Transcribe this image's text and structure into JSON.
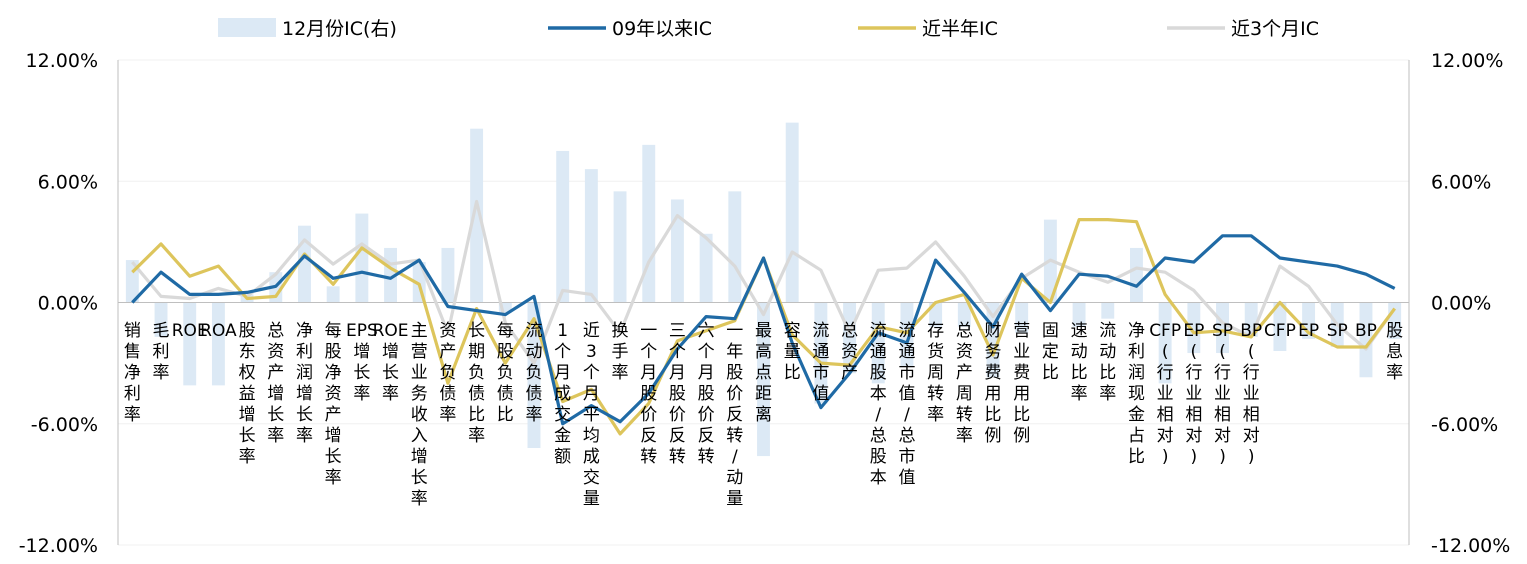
{
  "chart_data": {
    "type": "bar+line",
    "title": "",
    "ylim_left": [
      -0.12,
      0.12
    ],
    "ylim_right": [
      -0.12,
      0.12
    ],
    "left_ticks": [
      "12.00%",
      "6.00%",
      "0.00%",
      "-6.00%",
      "-12.00%"
    ],
    "right_ticks": [
      "12.00%",
      "6.00%",
      "0.00%",
      "-6.00%",
      "-12.00%"
    ],
    "legend_position": "top",
    "categories": [
      "销售净利率",
      "毛利率",
      "ROE",
      "ROA",
      "股东权益增长率",
      "总资产增长率",
      "净利润增长率",
      "每股净资产增长率",
      "EPS增长率",
      "ROE增长率",
      "主营业务收入增长率",
      "资产负债率",
      "长期负债比率",
      "每股负债比",
      "流动负债率",
      "1个月成交金额",
      "近3个月平均成交量",
      "换手率",
      "一个月股价反转",
      "三个月股价反转",
      "六个月股价反转",
      "一年股价反转/动量",
      "最高点距离",
      "容量比",
      "流通市值",
      "总资产",
      "流通股本/总股本",
      "流通市值/总市值",
      "存货周转率",
      "总资产周转率",
      "财务费用比例",
      "营业费用比例",
      "固定比",
      "速动比率",
      "流动比率",
      "净利润现金占比",
      "CFP(行业相对)",
      "EP(行业相对)",
      "SP(行业相对)",
      "BP(行业相对)",
      "CFP",
      "EP",
      "SP",
      "BP",
      "股息率"
    ],
    "series": [
      {
        "name": "12月份IC(右)",
        "type": "bar",
        "axis": "right",
        "color": "#dce9f5",
        "values": [
          0.021,
          -0.017,
          -0.041,
          -0.041,
          0.004,
          0.015,
          0.038,
          0.008,
          0.044,
          0.027,
          0.02,
          0.027,
          0.086,
          -0.005,
          -0.072,
          0.075,
          0.066,
          0.055,
          0.078,
          0.051,
          0.034,
          0.055,
          -0.076,
          0.089,
          -0.05,
          -0.035,
          -0.04,
          -0.032,
          -0.012,
          -0.012,
          -0.037,
          -0.015,
          0.041,
          -0.012,
          -0.008,
          0.027,
          -0.04,
          -0.025,
          -0.025,
          -0.017,
          -0.024,
          -0.018,
          -0.022,
          -0.037,
          -0.018
        ]
      },
      {
        "name": "09年以来IC",
        "type": "line",
        "axis": "left",
        "color": "#1f6aa5",
        "values": [
          0.0,
          0.015,
          0.004,
          0.004,
          0.005,
          0.008,
          0.023,
          0.012,
          0.015,
          0.012,
          0.021,
          -0.002,
          -0.004,
          -0.006,
          0.003,
          -0.06,
          -0.051,
          -0.059,
          -0.045,
          -0.023,
          -0.007,
          -0.008,
          0.022,
          -0.02,
          -0.052,
          -0.035,
          -0.015,
          -0.02,
          0.021,
          0.005,
          -0.012,
          0.014,
          -0.004,
          0.014,
          0.013,
          0.008,
          0.022,
          0.02,
          0.033,
          0.033,
          0.022,
          0.02,
          0.018,
          0.014,
          0.007
        ]
      },
      {
        "name": "近半年IC",
        "type": "line",
        "axis": "left",
        "color": "#ddc55c",
        "values": [
          0.015,
          0.029,
          0.013,
          0.018,
          0.002,
          0.003,
          0.024,
          0.009,
          0.027,
          0.017,
          0.009,
          -0.04,
          -0.003,
          -0.03,
          -0.008,
          -0.049,
          -0.043,
          -0.065,
          -0.05,
          -0.019,
          -0.014,
          -0.009,
          0.022,
          -0.016,
          -0.03,
          -0.031,
          -0.012,
          -0.015,
          0.0,
          0.004,
          -0.026,
          0.012,
          0.0,
          0.041,
          0.041,
          0.04,
          0.004,
          -0.015,
          -0.014,
          -0.017,
          0.0,
          -0.015,
          -0.022,
          -0.022,
          -0.003
        ]
      },
      {
        "name": "近3个月IC",
        "type": "line",
        "axis": "left",
        "color": "#d9d9d9",
        "values": [
          0.02,
          0.003,
          0.002,
          0.007,
          0.003,
          0.014,
          0.031,
          0.019,
          0.029,
          0.019,
          0.021,
          -0.015,
          0.05,
          -0.01,
          -0.03,
          0.006,
          0.004,
          -0.015,
          0.02,
          0.043,
          0.032,
          0.018,
          -0.006,
          0.025,
          0.016,
          -0.015,
          0.016,
          0.017,
          0.03,
          0.013,
          -0.007,
          0.012,
          0.021,
          0.015,
          0.01,
          0.017,
          0.015,
          0.006,
          -0.01,
          -0.017,
          0.018,
          0.008,
          -0.011,
          -0.023,
          -0.003
        ]
      }
    ]
  }
}
